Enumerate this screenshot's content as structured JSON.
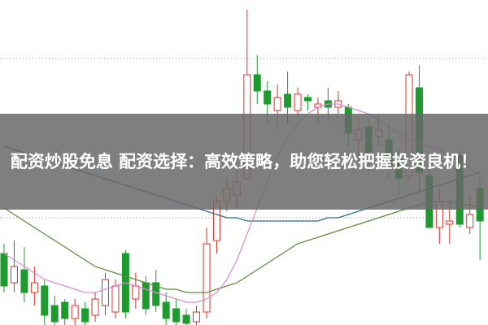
{
  "chart_data": {
    "type": "candlestick",
    "title": "配资炒股免息 配资选择：高效策略，助您轻松把握投资良机！",
    "ylim": [
      0,
      100
    ],
    "gridlines": [
      82,
      33
    ],
    "up_color": "#e0302a",
    "down_color": "#1e9a2e",
    "open": [
      22,
      13,
      17,
      10,
      12,
      6,
      7,
      2,
      5,
      3,
      6,
      4,
      22,
      8,
      13,
      13,
      7,
      5,
      3,
      1,
      4,
      26,
      38,
      40,
      45,
      77,
      72,
      66,
      71,
      66,
      70,
      67,
      69,
      67,
      67,
      57,
      61,
      58,
      57,
      51,
      46,
      73,
      46,
      30,
      31,
      52,
      30,
      42
    ],
    "close": [
      12,
      18,
      10,
      13,
      3,
      1,
      2,
      6,
      1,
      8,
      14,
      12,
      4,
      12,
      5,
      6,
      2,
      1,
      0.5,
      4,
      25,
      38,
      42,
      44,
      77,
      72,
      68,
      70,
      67,
      71,
      69,
      68,
      67,
      69,
      59,
      60,
      53,
      60,
      49,
      45,
      77,
      47,
      30,
      38,
      32,
      31,
      34,
      32
    ],
    "high": [
      25,
      26,
      24,
      18,
      14,
      9,
      8,
      8,
      7,
      10,
      16,
      14,
      23,
      16,
      15,
      17,
      10,
      8,
      5,
      6,
      30,
      40,
      45,
      48,
      97,
      83,
      75,
      74,
      78,
      73,
      71,
      70,
      73,
      72,
      68,
      64,
      64,
      65,
      62,
      54,
      78,
      80,
      48,
      42,
      38,
      54,
      40,
      45
    ],
    "low": [
      10,
      10,
      7,
      6,
      0,
      0,
      0,
      0,
      0,
      1,
      3,
      2,
      2,
      5,
      3,
      4,
      0,
      0,
      0,
      0,
      2,
      22,
      35,
      36,
      45,
      68,
      62,
      60,
      62,
      64,
      66,
      62,
      63,
      65,
      55,
      50,
      47,
      55,
      45,
      40,
      44,
      40,
      30,
      25,
      25,
      30,
      28,
      20
    ],
    "lines": [
      {
        "color": "#2b6f86",
        "values": [
          55,
          54,
          53,
          52,
          51,
          50,
          49,
          48,
          47,
          46,
          45,
          44,
          43,
          42,
          41,
          40,
          39,
          38,
          37,
          36,
          35,
          34,
          33,
          33,
          32,
          32,
          32,
          32,
          32,
          32,
          32,
          32,
          33,
          33,
          34,
          35,
          36,
          37,
          38,
          39,
          40,
          41,
          42,
          43,
          44,
          45,
          46,
          47
        ]
      },
      {
        "color": "#5b8c3a",
        "values": [
          36,
          34,
          32,
          30,
          28,
          26,
          24,
          22,
          20,
          18,
          17,
          16,
          15,
          14,
          13,
          12,
          11,
          11,
          10,
          10,
          10,
          11,
          12,
          13,
          15,
          17,
          19,
          21,
          23,
          25,
          26,
          27,
          28,
          29,
          30,
          31,
          32,
          33,
          34,
          35,
          36,
          37,
          38,
          38,
          38,
          37,
          37,
          36
        ]
      },
      {
        "color": "#d98bd6",
        "values": [
          22,
          20,
          18,
          16,
          14,
          13,
          12,
          11,
          10,
          10,
          11,
          12,
          13,
          12,
          11,
          10,
          9,
          8,
          7,
          7,
          8,
          10,
          14,
          20,
          28,
          36,
          44,
          52,
          58,
          62,
          65,
          67,
          68,
          68,
          67,
          66,
          65,
          63,
          61,
          59,
          57,
          56,
          55,
          54,
          52,
          50,
          48,
          46
        ]
      }
    ]
  }
}
